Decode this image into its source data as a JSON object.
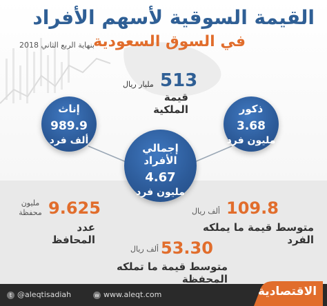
{
  "header": {
    "title_line1": "القيمة السوقية لأسهم الأفراد",
    "title_line2": "في السوق السعودية",
    "date": "بنهاية الربع الثاني 2018"
  },
  "ownership": {
    "value": "513",
    "unit": "مليار ريال",
    "label": "قيمة الملكية"
  },
  "females": {
    "title": "إناث",
    "value": "989.9",
    "unit": "ألف فرد"
  },
  "males": {
    "title": "ذكور",
    "value": "3.68",
    "unit": "مليون فرد"
  },
  "total": {
    "title": "إجمالي الأفراد",
    "value": "4.67",
    "unit": "مليون فرد"
  },
  "portfolios": {
    "value": "9.625",
    "unit_line1": "مليون",
    "unit_line2": "محفظة",
    "label": "عدد المحافظ"
  },
  "avg_individual": {
    "value": "109.8",
    "unit": "ألف ريال",
    "label": "متوسط قيمة ما يملكه الفرد"
  },
  "avg_portfolio": {
    "value": "53.30",
    "unit": "ألف ريال",
    "label": "متوسط قيمة ما تملكه المحفظة"
  },
  "footer": {
    "twitter": "@aleqtisadiah",
    "website": "www.aleqt.com",
    "brand": "الاقتصادية"
  },
  "colors": {
    "blue": "#2f5f95",
    "orange": "#e16d2c",
    "dark": "#2a2a2a"
  }
}
